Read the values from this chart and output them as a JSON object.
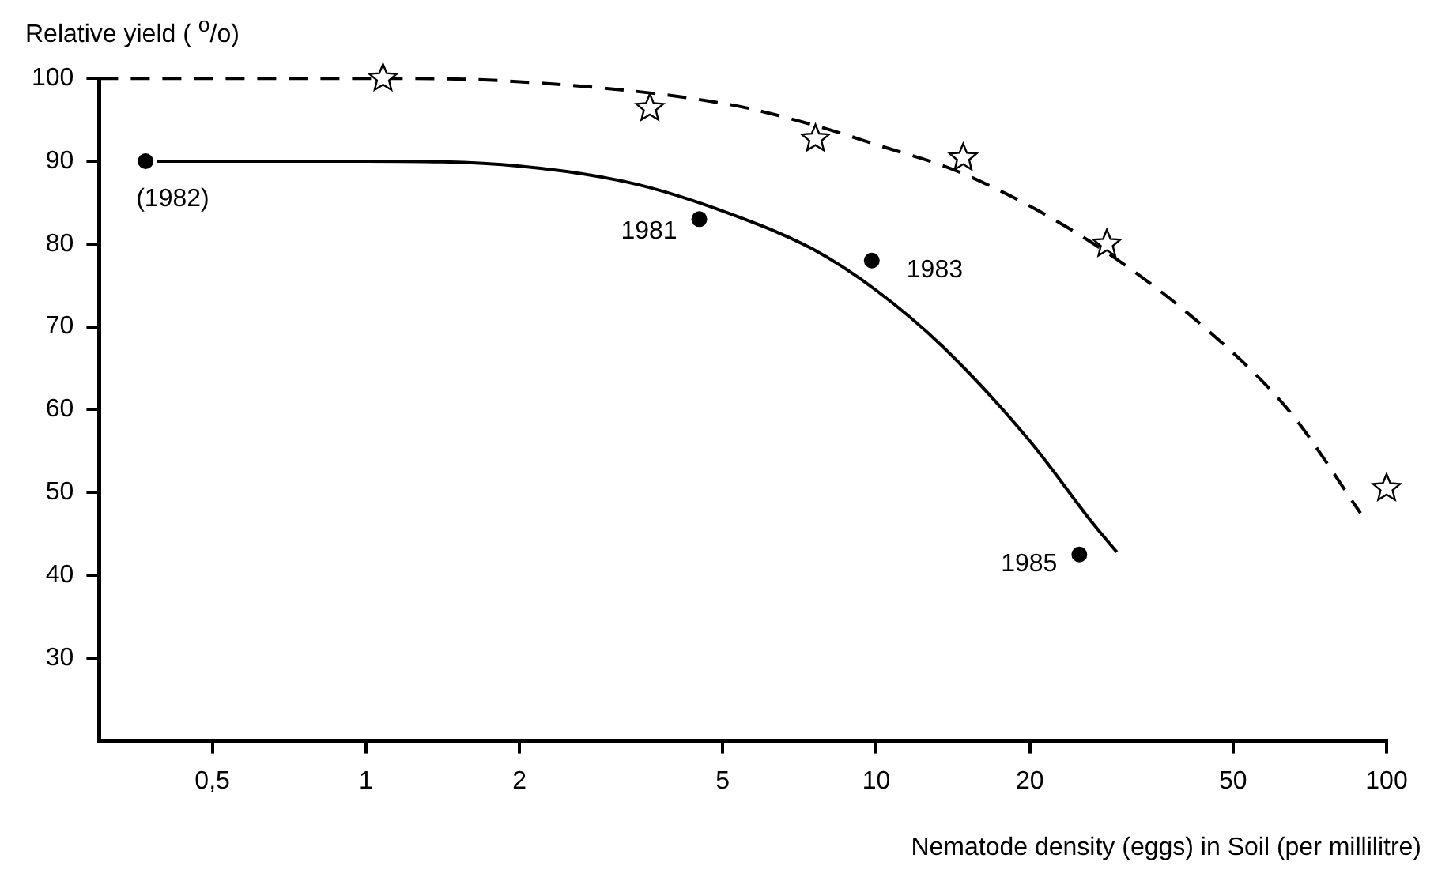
{
  "chart_data": {
    "type": "scatter",
    "xlabel": "Nematode density (eggs) in Soil (per millilitre)",
    "ylabel": "Relative yield ( $^{o}$/o)",
    "log": "x",
    "grid": false,
    "legend": false,
    "xlim": [
      0.3,
      100
    ],
    "xticks": [
      {
        "value": 0.5,
        "label": "0,5"
      },
      1,
      2,
      5,
      10,
      20,
      50,
      100
    ],
    "ylim": [
      20,
      100
    ],
    "yticks": [
      30,
      40,
      50,
      60,
      70,
      80,
      90,
      100
    ],
    "series": [
      {
        "type": "scatter",
        "color": "#000000",
        "marker": "circle",
        "x": [
          0.37,
          4.5,
          9.8,
          25
        ],
        "values": [
          90,
          83,
          78,
          42.5
        ]
      },
      {
        "type": "scatter",
        "color": "#000000",
        "marker": "star",
        "x": [
          1.08,
          3.6,
          7.6,
          14.8,
          28.3,
          100
        ],
        "values": [
          100,
          96.4,
          92.7,
          90.4,
          80,
          50.5
        ]
      },
      {
        "type": "line",
        "color": "#000000",
        "marker": "none",
        "line_style": "solid",
        "x": [
          0.39,
          1,
          2,
          3.4,
          5.25,
          7.5,
          10,
          13.5,
          20,
          26.7,
          29.6
        ],
        "values": [
          90,
          90,
          89.4,
          87.2,
          83.5,
          79.4,
          74.4,
          67.6,
          56.2,
          46.1,
          42.8
        ]
      },
      {
        "type": "line",
        "color": "#000000",
        "marker": "none",
        "line_style": "dashed",
        "x": [
          0.3,
          1,
          2,
          5.1,
          7.5,
          10,
          14.8,
          26.7,
          44.4,
          64.9,
          88.9
        ],
        "values": [
          100,
          100,
          99.6,
          96.9,
          94.4,
          92,
          88.5,
          80,
          69.7,
          59.6,
          47.5
        ]
      }
    ],
    "annotations": [
      {
        "text": "(1982)",
        "x": 0.37,
        "y": 90
      },
      {
        "text": "1981",
        "x": 4.5,
        "y": 83
      },
      {
        "text": "1983",
        "x": 9.8,
        "y": 78
      },
      {
        "text": "1985",
        "x": 25,
        "y": 42.5
      }
    ]
  }
}
